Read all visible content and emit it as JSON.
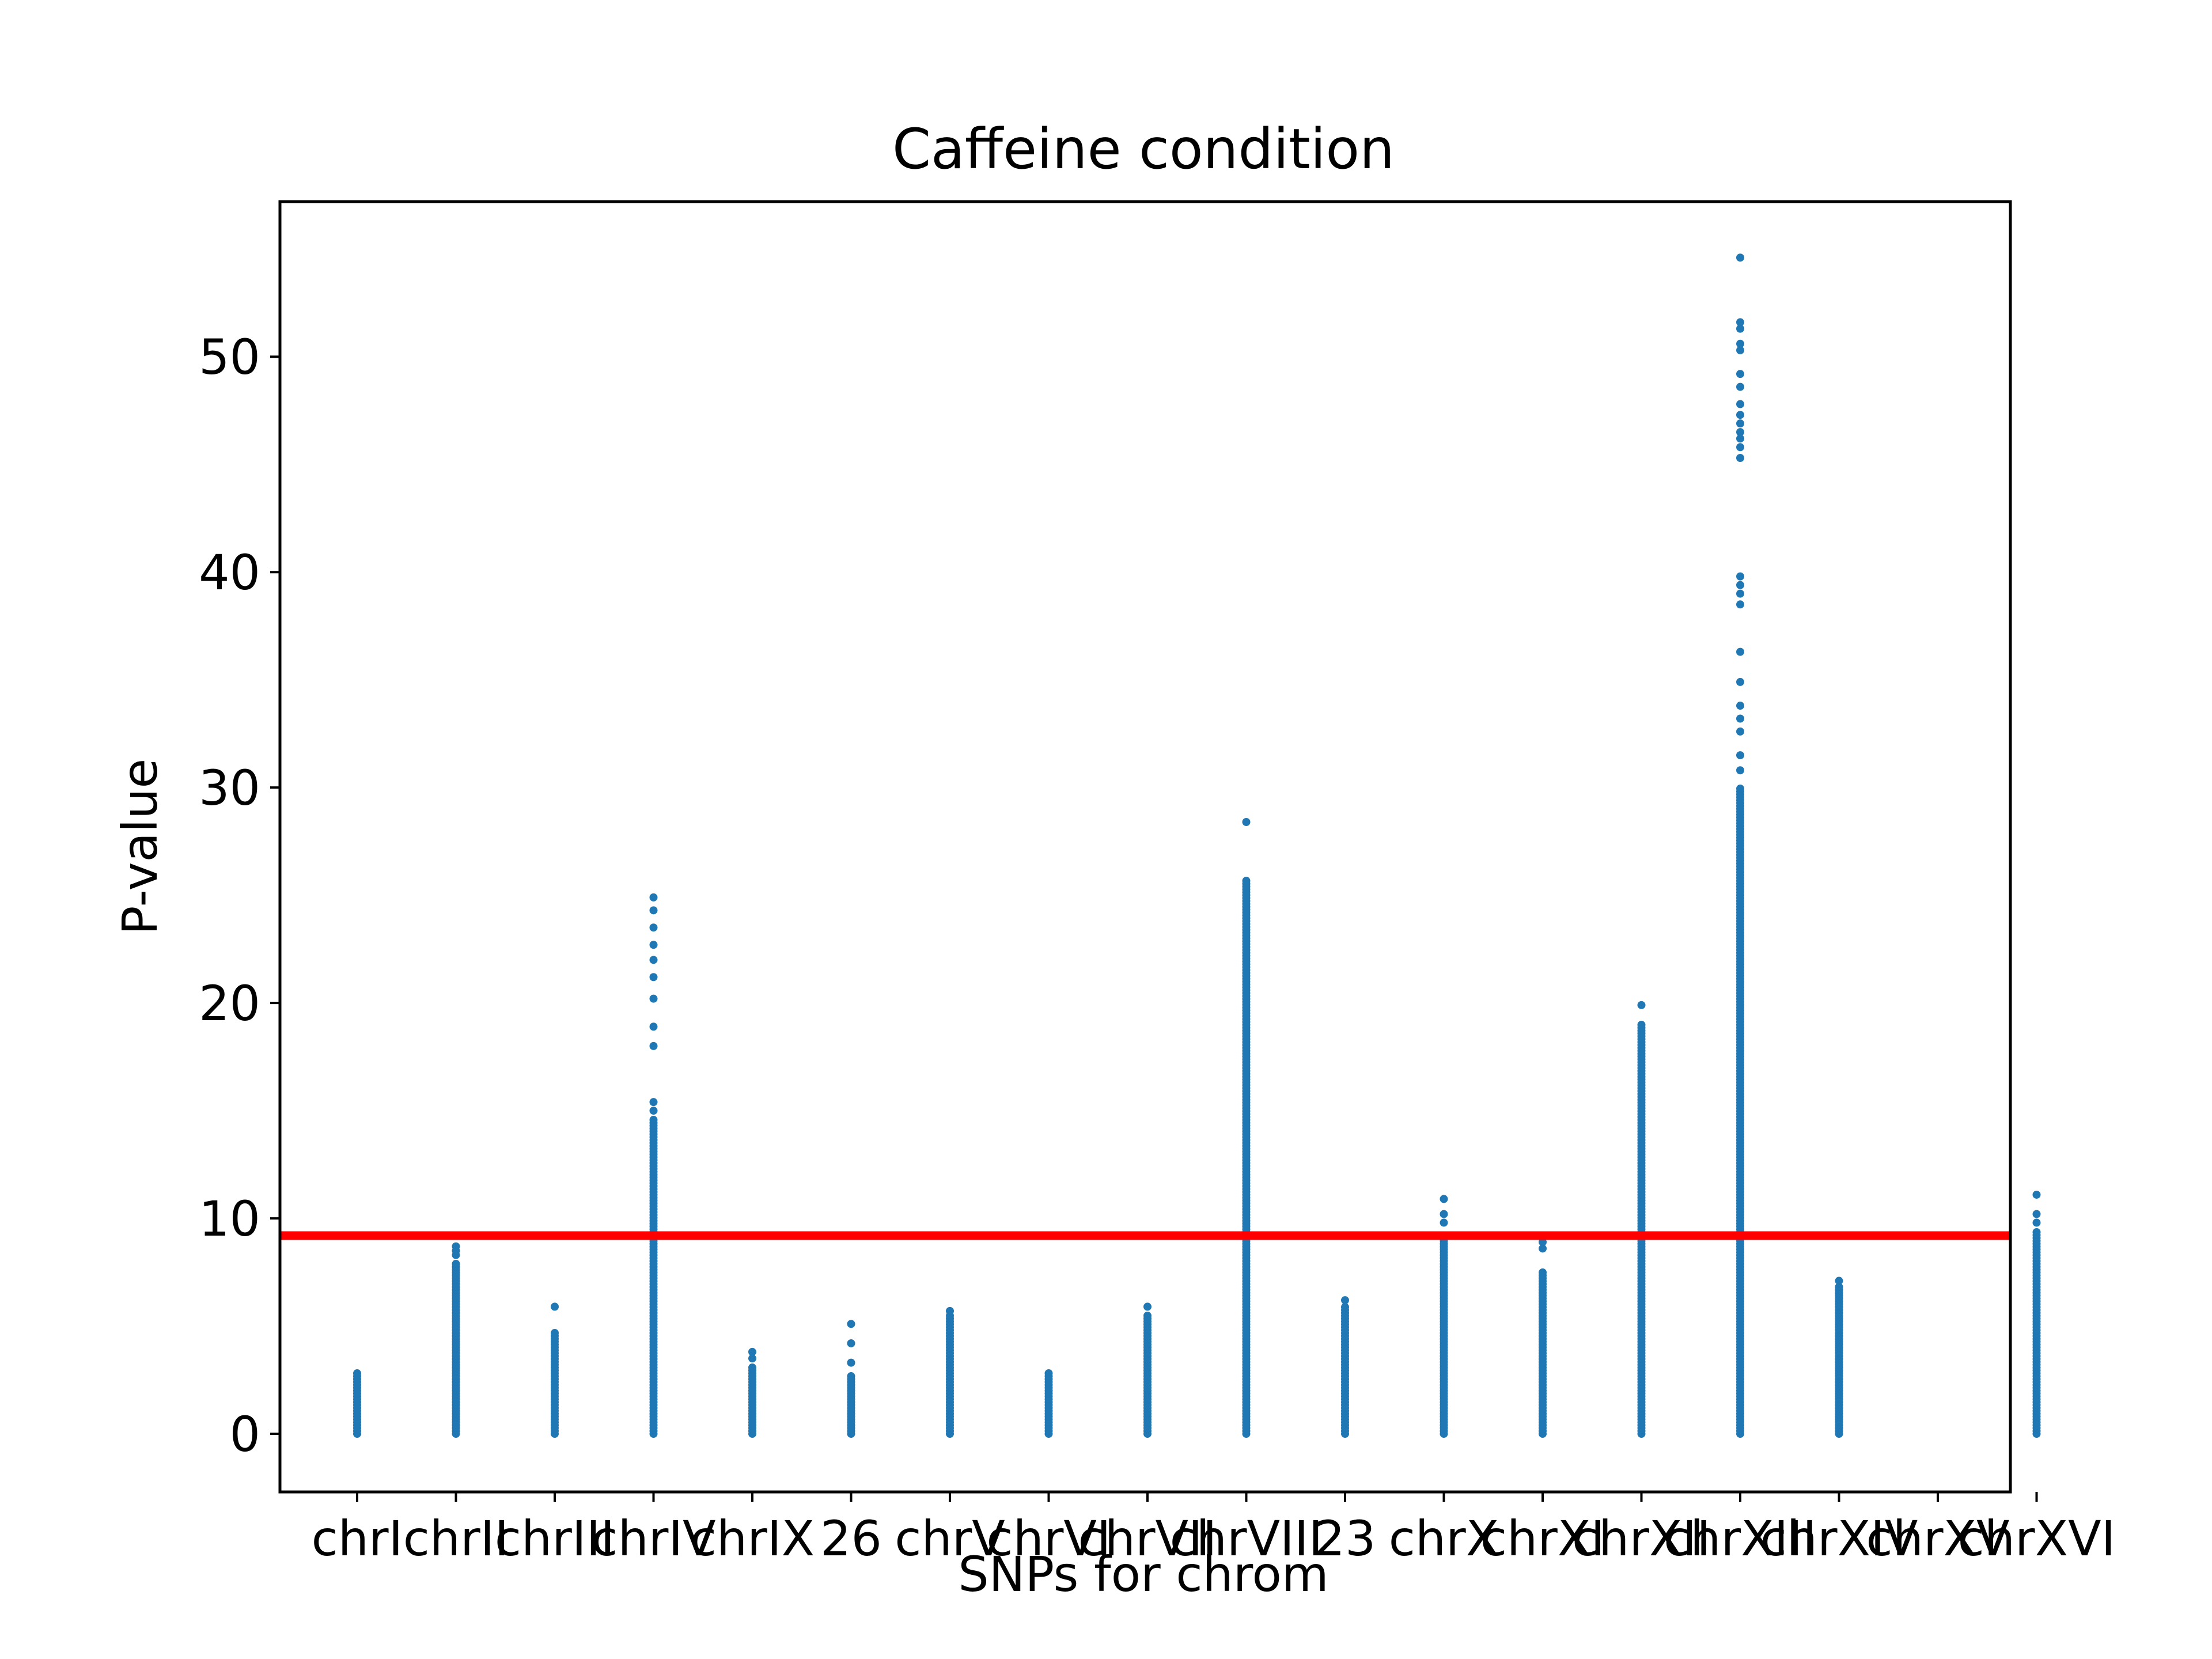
{
  "chart_data": {
    "type": "scatter",
    "title": "Caffeine condition",
    "xlabel": "SNPs for chrom",
    "ylabel": "P-value",
    "ylim": [
      -2.7,
      57.2
    ],
    "yticks": [
      0,
      10,
      20,
      30,
      40,
      50
    ],
    "categories": [
      "chrI",
      "chrII",
      "chrIII",
      "chrIV",
      "chrIX",
      "26",
      "chrV",
      "chrVI",
      "chrVII",
      "chrVIII",
      "23",
      "chrX",
      "chrXI",
      "chrXII",
      "chrXIII",
      "chrXIV",
      "chrXV",
      "chrXVI"
    ],
    "grid": false,
    "legend": "none",
    "colors": {
      "points": "#1f77b4",
      "threshold": "#ff0000",
      "frame": "#000000"
    },
    "threshold": 9.2,
    "series": [
      {
        "category": "chrI",
        "max": 3.0,
        "dense_max": 2.9,
        "sparse": []
      },
      {
        "category": "chrII",
        "max": 8.7,
        "dense_max": 8.0,
        "sparse": [
          8.3,
          8.5,
          8.7
        ]
      },
      {
        "category": "chrIII",
        "max": 5.9,
        "dense_max": 4.8,
        "sparse": [
          5.9
        ]
      },
      {
        "category": "chrIV",
        "max": 24.9,
        "dense_max": 14.6,
        "sparse": [
          15.0,
          15.4,
          18.0,
          18.9,
          20.2,
          21.2,
          22.0,
          22.7,
          23.5,
          24.3,
          24.9
        ]
      },
      {
        "category": "chrIX",
        "max": 3.8,
        "dense_max": 3.2,
        "sparse": [
          3.5,
          3.8
        ]
      },
      {
        "category": "26",
        "max": 5.1,
        "dense_max": 2.8,
        "sparse": [
          3.3,
          4.2,
          5.1
        ]
      },
      {
        "category": "chrV",
        "max": 5.7,
        "dense_max": 5.5,
        "sparse": [
          5.7
        ]
      },
      {
        "category": "chrVI",
        "max": 3.0,
        "dense_max": 2.9,
        "sparse": []
      },
      {
        "category": "chrVII",
        "max": 5.9,
        "dense_max": 5.6,
        "sparse": [
          5.9
        ]
      },
      {
        "category": "chrVIII",
        "max": 28.4,
        "dense_max": 25.8,
        "sparse": [
          28.4
        ]
      },
      {
        "category": "23",
        "max": 6.2,
        "dense_max": 6.0,
        "sparse": [
          6.2
        ]
      },
      {
        "category": "chrX",
        "max": 10.9,
        "dense_max": 9.2,
        "sparse": [
          9.8,
          10.2,
          10.9
        ]
      },
      {
        "category": "chrXI",
        "max": 8.9,
        "dense_max": 7.6,
        "sparse": [
          8.6,
          8.9
        ]
      },
      {
        "category": "chrXII",
        "max": 19.9,
        "dense_max": 19.0,
        "sparse": [
          19.9
        ]
      },
      {
        "category": "chrXIII",
        "max": 54.6,
        "dense_max": 30.0,
        "sparse": [
          30.8,
          31.5,
          32.6,
          33.2,
          33.8,
          34.9,
          36.3,
          38.5,
          39.0,
          39.4,
          39.8,
          45.3,
          45.8,
          46.2,
          46.5,
          46.9,
          47.3,
          47.8,
          48.6,
          49.2,
          50.3,
          50.6,
          51.3,
          51.6,
          54.6
        ]
      },
      {
        "category": "chrXIV",
        "max": 7.1,
        "dense_max": 6.9,
        "sparse": [
          7.1
        ]
      },
      {
        "category": "chrXVI",
        "max": 11.1,
        "dense_max": 9.4,
        "sparse": [
          9.8,
          10.2,
          11.1
        ]
      }
    ],
    "series_positions": [
      0,
      1,
      2,
      3,
      4,
      5,
      6,
      7,
      8,
      9,
      10,
      11,
      12,
      13,
      14,
      15,
      17
    ]
  }
}
